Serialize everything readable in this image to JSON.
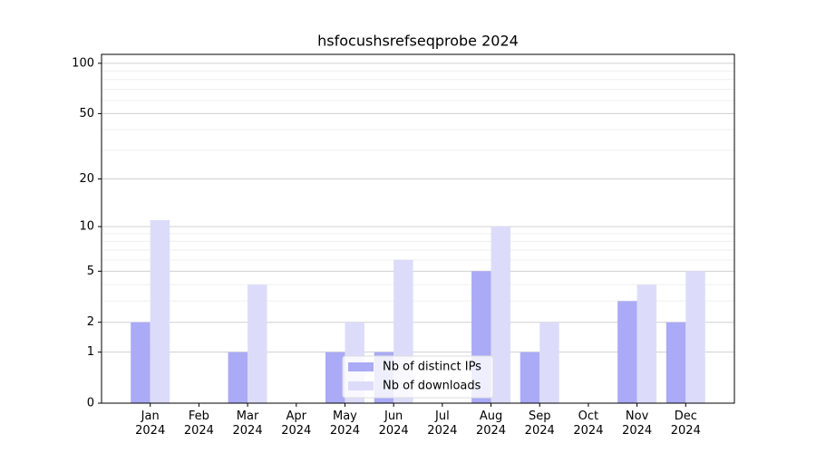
{
  "chart_data": {
    "type": "bar",
    "title": "hsfocushsrefseqprobe 2024",
    "categories": [
      "Jan 2024",
      "Feb 2024",
      "Mar 2024",
      "Apr 2024",
      "May 2024",
      "Jun 2024",
      "Jul 2024",
      "Aug 2024",
      "Sep 2024",
      "Oct 2024",
      "Nov 2024",
      "Dec 2024"
    ],
    "series": [
      {
        "name": "Nb of distinct IPs",
        "color": "#aaaaf6",
        "values": [
          2,
          0,
          1,
          0,
          1,
          1,
          0,
          5,
          1,
          0,
          3,
          2
        ]
      },
      {
        "name": "Nb of downloads",
        "color": "#dcdcfa",
        "values": [
          11,
          0,
          4,
          0,
          2,
          6,
          0,
          10,
          2,
          0,
          4,
          5
        ]
      }
    ],
    "yscale": "log1p",
    "ylim": [
      0,
      113
    ],
    "yticks": [
      0,
      1,
      2,
      5,
      10,
      20,
      50,
      100
    ],
    "yminorticks": [
      3,
      4,
      6,
      7,
      8,
      9,
      30,
      40,
      60,
      70,
      80,
      90
    ],
    "grid": true,
    "legend": "lower center"
  }
}
